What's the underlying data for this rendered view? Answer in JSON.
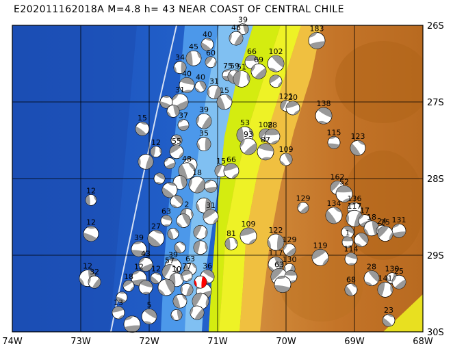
{
  "title": "E202011162018A  M=4.8  h= 43  NEAR COAST OF CENTRAL CHILE",
  "x_ticks": [
    "74W",
    "73W",
    "72W",
    "71W",
    "70W",
    "69W",
    "68W"
  ],
  "y_ticks": [
    "26S",
    "27S",
    "28S",
    "29S",
    "30S"
  ],
  "colors": {
    "ocean_deep": "#1e5fc4",
    "ocean_mid": "#2f7fe0",
    "ocean_shelf": "#6fb4f0",
    "coast_low": "#d8f000",
    "lowland": "#f4f400",
    "upland": "#f0a040",
    "highland": "#c07020",
    "mech_fill": "#999999",
    "main_event": "#ff0000"
  },
  "events": [
    {
      "lon": -70.63,
      "lat": -26.05,
      "depth": "39"
    },
    {
      "lon": -70.73,
      "lat": -26.17,
      "depth": "48"
    },
    {
      "lon": -69.55,
      "lat": -26.2,
      "depth": "183"
    },
    {
      "lon": -71.15,
      "lat": -26.25,
      "depth": "40"
    },
    {
      "lon": -71.35,
      "lat": -26.43,
      "depth": "45"
    },
    {
      "lon": -71.1,
      "lat": -26.48,
      "depth": "60"
    },
    {
      "lon": -70.5,
      "lat": -26.48,
      "depth": "66"
    },
    {
      "lon": -70.15,
      "lat": -26.5,
      "depth": "102"
    },
    {
      "lon": -71.55,
      "lat": -26.55,
      "depth": "34"
    },
    {
      "lon": -70.4,
      "lat": -26.6,
      "depth": "69"
    },
    {
      "lon": -70.85,
      "lat": -26.65,
      "depth": "75"
    },
    {
      "lon": -70.75,
      "lat": -26.67,
      "depth": "59"
    },
    {
      "lon": -70.65,
      "lat": -26.7,
      "depth": "51"
    },
    {
      "lon": -70.15,
      "lat": -26.73,
      "depth": ""
    },
    {
      "lon": -71.45,
      "lat": -26.78,
      "depth": "40"
    },
    {
      "lon": -71.25,
      "lat": -26.8,
      "depth": "40"
    },
    {
      "lon": -71.05,
      "lat": -26.87,
      "depth": "31"
    },
    {
      "lon": -71.55,
      "lat": -27.0,
      "depth": "31"
    },
    {
      "lon": -71.75,
      "lat": -27.0,
      "depth": ""
    },
    {
      "lon": -70.9,
      "lat": -27.0,
      "depth": "15"
    },
    {
      "lon": -70.0,
      "lat": -27.05,
      "depth": "121"
    },
    {
      "lon": -69.9,
      "lat": -27.08,
      "depth": "20"
    },
    {
      "lon": -69.45,
      "lat": -27.18,
      "depth": "138"
    },
    {
      "lon": -71.65,
      "lat": -27.12,
      "depth": ""
    },
    {
      "lon": -71.2,
      "lat": -27.25,
      "depth": "39"
    },
    {
      "lon": -71.5,
      "lat": -27.3,
      "depth": "37"
    },
    {
      "lon": -72.1,
      "lat": -27.35,
      "depth": "15"
    },
    {
      "lon": -70.6,
      "lat": -27.43,
      "depth": "53"
    },
    {
      "lon": -70.3,
      "lat": -27.43,
      "depth": "108"
    },
    {
      "lon": -70.2,
      "lat": -27.45,
      "depth": "28"
    },
    {
      "lon": -71.6,
      "lat": -27.5,
      "depth": ""
    },
    {
      "lon": -71.2,
      "lat": -27.55,
      "depth": "35"
    },
    {
      "lon": -70.55,
      "lat": -27.58,
      "depth": "93"
    },
    {
      "lon": -69.3,
      "lat": -27.53,
      "depth": "115"
    },
    {
      "lon": -68.95,
      "lat": -27.6,
      "depth": "123"
    },
    {
      "lon": -71.9,
      "lat": -27.65,
      "depth": "12"
    },
    {
      "lon": -71.6,
      "lat": -27.65,
      "depth": "55"
    },
    {
      "lon": -70.3,
      "lat": -27.65,
      "depth": "87"
    },
    {
      "lon": -70.0,
      "lat": -27.75,
      "depth": "109"
    },
    {
      "lon": -72.05,
      "lat": -27.78,
      "depth": ""
    },
    {
      "lon": -71.7,
      "lat": -27.8,
      "depth": ""
    },
    {
      "lon": -71.4,
      "lat": -27.82,
      "depth": ""
    },
    {
      "lon": -71.45,
      "lat": -27.9,
      "depth": "48"
    },
    {
      "lon": -70.95,
      "lat": -27.9,
      "depth": "15"
    },
    {
      "lon": -70.8,
      "lat": -27.9,
      "depth": "66"
    },
    {
      "lon": -71.85,
      "lat": -28.0,
      "depth": ""
    },
    {
      "lon": -71.55,
      "lat": -28.05,
      "depth": ""
    },
    {
      "lon": -71.3,
      "lat": -28.08,
      "depth": "18"
    },
    {
      "lon": -71.1,
      "lat": -28.1,
      "depth": ""
    },
    {
      "lon": -71.7,
      "lat": -28.15,
      "depth": ""
    },
    {
      "lon": -72.85,
      "lat": -28.28,
      "depth": "12"
    },
    {
      "lon": -69.25,
      "lat": -28.12,
      "depth": "162"
    },
    {
      "lon": -69.15,
      "lat": -28.2,
      "depth": "52"
    },
    {
      "lon": -71.6,
      "lat": -28.3,
      "depth": ""
    },
    {
      "lon": -71.2,
      "lat": -28.35,
      "depth": ""
    },
    {
      "lon": -69.75,
      "lat": -28.38,
      "depth": "129"
    },
    {
      "lon": -69.0,
      "lat": -28.4,
      "depth": "136"
    },
    {
      "lon": -69.3,
      "lat": -28.48,
      "depth": "134"
    },
    {
      "lon": -71.45,
      "lat": -28.47,
      "depth": "2"
    },
    {
      "lon": -71.1,
      "lat": -28.5,
      "depth": "31"
    },
    {
      "lon": -71.75,
      "lat": -28.55,
      "depth": "63"
    },
    {
      "lon": -71.5,
      "lat": -28.55,
      "depth": ""
    },
    {
      "lon": -69.0,
      "lat": -28.52,
      "depth": "117"
    },
    {
      "lon": -68.85,
      "lat": -28.55,
      "depth": "17"
    },
    {
      "lon": -72.85,
      "lat": -28.72,
      "depth": "12"
    },
    {
      "lon": -71.65,
      "lat": -28.72,
      "depth": ""
    },
    {
      "lon": -71.25,
      "lat": -28.7,
      "depth": ""
    },
    {
      "lon": -70.55,
      "lat": -28.75,
      "depth": "109"
    },
    {
      "lon": -69.1,
      "lat": -28.7,
      "depth": ""
    },
    {
      "lon": -68.75,
      "lat": -28.65,
      "depth": "18"
    },
    {
      "lon": -68.6,
      "lat": -28.68,
      "depth": "24"
    },
    {
      "lon": -68.35,
      "lat": -28.68,
      "depth": "131"
    },
    {
      "lon": -71.9,
      "lat": -28.78,
      "depth": "27"
    },
    {
      "lon": -70.8,
      "lat": -28.85,
      "depth": "81"
    },
    {
      "lon": -68.55,
      "lat": -28.72,
      "depth": "25"
    },
    {
      "lon": -69.1,
      "lat": -28.83,
      "depth": "1"
    },
    {
      "lon": -68.9,
      "lat": -28.8,
      "depth": ""
    },
    {
      "lon": -70.15,
      "lat": -28.83,
      "depth": "122"
    },
    {
      "lon": -69.95,
      "lat": -28.93,
      "depth": "129"
    },
    {
      "lon": -72.15,
      "lat": -28.92,
      "depth": "39"
    },
    {
      "lon": -71.55,
      "lat": -28.9,
      "depth": ""
    },
    {
      "lon": -71.25,
      "lat": -28.9,
      "depth": ""
    },
    {
      "lon": -69.5,
      "lat": -29.03,
      "depth": "119"
    },
    {
      "lon": -69.05,
      "lat": -29.05,
      "depth": "114"
    },
    {
      "lon": -70.15,
      "lat": -29.12,
      "depth": "117"
    },
    {
      "lon": -69.95,
      "lat": -29.18,
      "depth": "130"
    },
    {
      "lon": -72.05,
      "lat": -29.12,
      "depth": "43"
    },
    {
      "lon": -71.65,
      "lat": -29.15,
      "depth": "39"
    },
    {
      "lon": -71.4,
      "lat": -29.18,
      "depth": "63"
    },
    {
      "lon": -71.7,
      "lat": -29.22,
      "depth": "57"
    },
    {
      "lon": -71.45,
      "lat": -29.27,
      "depth": "77"
    },
    {
      "lon": -71.15,
      "lat": -29.28,
      "depth": "36"
    },
    {
      "lon": -72.9,
      "lat": -29.3,
      "depth": "12"
    },
    {
      "lon": -72.8,
      "lat": -29.35,
      "depth": "32"
    },
    {
      "lon": -72.15,
      "lat": -29.3,
      "depth": "12"
    },
    {
      "lon": -71.9,
      "lat": -29.3,
      "depth": "12"
    },
    {
      "lon": -71.6,
      "lat": -29.32,
      "depth": "10"
    },
    {
      "lon": -70.1,
      "lat": -29.28,
      "depth": "63"
    },
    {
      "lon": -69.93,
      "lat": -29.28,
      "depth": ""
    },
    {
      "lon": -68.75,
      "lat": -29.3,
      "depth": "28"
    },
    {
      "lon": -68.45,
      "lat": -29.3,
      "depth": "130"
    },
    {
      "lon": -68.35,
      "lat": -29.35,
      "depth": "25"
    },
    {
      "lon": -70.05,
      "lat": -29.38,
      "depth": ""
    },
    {
      "lon": -69.05,
      "lat": -29.45,
      "depth": "68"
    },
    {
      "lon": -68.55,
      "lat": -29.45,
      "depth": "141"
    },
    {
      "lon": -72.3,
      "lat": -29.4,
      "depth": "18"
    },
    {
      "lon": -72.05,
      "lat": -29.42,
      "depth": ""
    },
    {
      "lon": -71.75,
      "lat": -29.42,
      "depth": ""
    },
    {
      "lon": -71.45,
      "lat": -29.45,
      "depth": ""
    },
    {
      "lon": -71.2,
      "lat": -29.47,
      "depth": ""
    },
    {
      "lon": -72.4,
      "lat": -29.55,
      "depth": ""
    },
    {
      "lon": -71.55,
      "lat": -29.6,
      "depth": ""
    },
    {
      "lon": -71.25,
      "lat": -29.6,
      "depth": ""
    },
    {
      "lon": -72.45,
      "lat": -29.75,
      "depth": "13"
    },
    {
      "lon": -72.0,
      "lat": -29.8,
      "depth": "5"
    },
    {
      "lon": -71.6,
      "lat": -29.78,
      "depth": ""
    },
    {
      "lon": -71.3,
      "lat": -29.75,
      "depth": ""
    },
    {
      "lon": -72.25,
      "lat": -29.9,
      "depth": ""
    },
    {
      "lon": -68.5,
      "lat": -29.85,
      "depth": "23"
    }
  ],
  "main_event": {
    "lon": -71.25,
    "lat": -29.35
  }
}
